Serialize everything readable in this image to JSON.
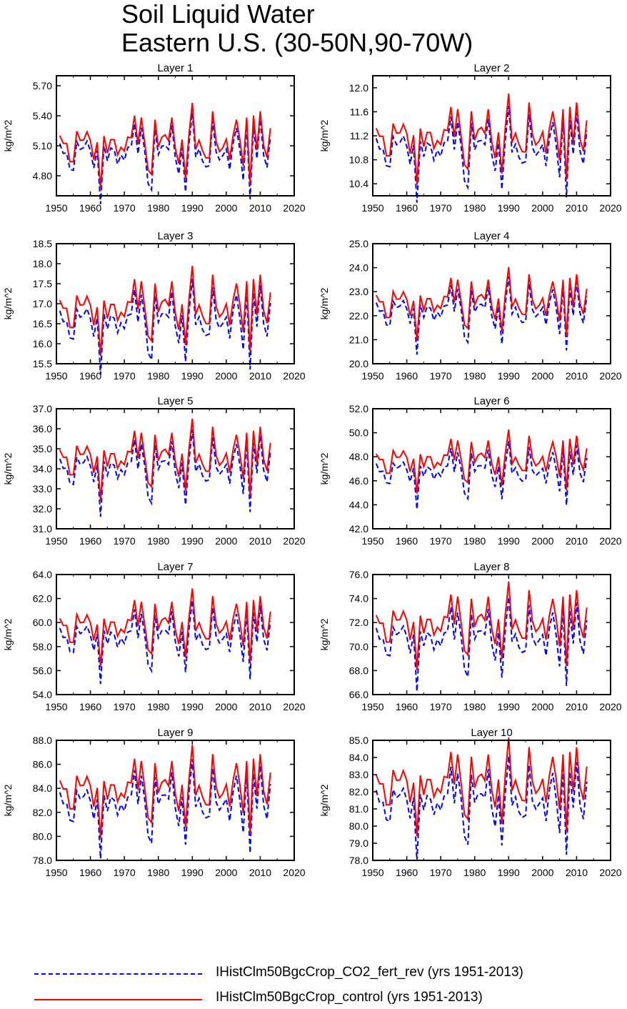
{
  "title": {
    "line1": "Soil Liquid Water",
    "line2": "Eastern U.S. (30-50N,90-70W)"
  },
  "legend": {
    "items": [
      {
        "label": "IHistClm50BgcCrop_CO2_fert_rev (yrs 1951-2013)",
        "color": "#0000ff",
        "style": "dashed"
      },
      {
        "label": "IHistClm50BgcCrop_control (yrs 1951-2013)",
        "color": "#ff0000",
        "style": "solid"
      }
    ]
  },
  "series_colors": {
    "fert_rev": "#0000ff",
    "control": "#ff0000"
  },
  "chart_data": [
    {
      "type": "line",
      "title": "Layer 1",
      "ylabel": "kg/m^2",
      "xlim": [
        1950,
        2020
      ],
      "ylim": [
        4.6,
        5.8
      ],
      "xticks": [
        1950,
        1960,
        1970,
        1980,
        1990,
        2000,
        2010,
        2020
      ],
      "xtick_labels": [
        "1950",
        "1960",
        "1970",
        "1980",
        "1990",
        "2000",
        "2010",
        "2020"
      ],
      "yticks": [
        4.8,
        5.1,
        5.4,
        5.7
      ],
      "ytick_labels": [
        "4.80",
        "5.10",
        "5.40",
        "5.70"
      ],
      "base": 5.13,
      "amp": 0.21,
      "offset": 0.09,
      "x_start": 1951,
      "x_end": 2013
    },
    {
      "type": "line",
      "title": "Layer 2",
      "ylabel": "kg/m^2",
      "xlim": [
        1950,
        2020
      ],
      "ylim": [
        10.2,
        12.2
      ],
      "xticks": [
        1950,
        1960,
        1970,
        1980,
        1990,
        2000,
        2010,
        2020
      ],
      "xtick_labels": [
        "1950",
        "1960",
        "1970",
        "1980",
        "1990",
        "2000",
        "2010",
        "2020"
      ],
      "yticks": [
        10.4,
        10.8,
        11.2,
        11.6,
        12.0
      ],
      "ytick_labels": [
        "10.4",
        "10.8",
        "11.2",
        "11.6",
        "12.0"
      ],
      "base": 11.2,
      "amp": 0.37,
      "offset": 0.19,
      "x_start": 1951,
      "x_end": 2013
    },
    {
      "type": "line",
      "title": "Layer 3",
      "ylabel": "kg/m^2",
      "xlim": [
        1950,
        2020
      ],
      "ylim": [
        15.5,
        18.5
      ],
      "xticks": [
        1950,
        1960,
        1970,
        1980,
        1990,
        2000,
        2010,
        2020
      ],
      "xtick_labels": [
        "1950",
        "1960",
        "1970",
        "1980",
        "1990",
        "2000",
        "2010",
        "2020"
      ],
      "yticks": [
        15.5,
        16.0,
        16.5,
        17.0,
        17.5,
        18.0,
        18.5
      ],
      "ytick_labels": [
        "15.5",
        "16.0",
        "16.5",
        "17.0",
        "17.5",
        "18.0",
        "18.5"
      ],
      "base": 16.9,
      "amp": 0.55,
      "offset": 0.3,
      "x_start": 1951,
      "x_end": 2013
    },
    {
      "type": "line",
      "title": "Layer 4",
      "ylabel": "kg/m^2",
      "xlim": [
        1950,
        2020
      ],
      "ylim": [
        20.0,
        25.0
      ],
      "xticks": [
        1950,
        1960,
        1970,
        1980,
        1990,
        2000,
        2010,
        2020
      ],
      "xtick_labels": [
        "1950",
        "1960",
        "1970",
        "1980",
        "1990",
        "2000",
        "2010",
        "2020"
      ],
      "yticks": [
        20.0,
        21.0,
        22.0,
        23.0,
        24.0,
        25.0
      ],
      "ytick_labels": [
        "20.0",
        "21.0",
        "22.0",
        "23.0",
        "24.0",
        "25.0"
      ],
      "base": 22.6,
      "amp": 0.75,
      "offset": 0.35,
      "x_start": 1951,
      "x_end": 2013
    },
    {
      "type": "line",
      "title": "Layer 5",
      "ylabel": "kg/m^2",
      "xlim": [
        1950,
        2020
      ],
      "ylim": [
        31.0,
        37.0
      ],
      "xticks": [
        1950,
        1960,
        1970,
        1980,
        1990,
        2000,
        2010,
        2020
      ],
      "xtick_labels": [
        "1950",
        "1960",
        "1970",
        "1980",
        "1990",
        "2000",
        "2010",
        "2020"
      ],
      "yticks": [
        31.0,
        32.0,
        33.0,
        34.0,
        35.0,
        36.0,
        37.0
      ],
      "ytick_labels": [
        "31.0",
        "32.0",
        "33.0",
        "34.0",
        "35.0",
        "36.0",
        "37.0"
      ],
      "base": 34.6,
      "amp": 1.0,
      "offset": 0.5,
      "x_start": 1951,
      "x_end": 2013
    },
    {
      "type": "line",
      "title": "Layer 6",
      "ylabel": "kg/m^2",
      "xlim": [
        1950,
        2020
      ],
      "ylim": [
        42.0,
        52.0
      ],
      "xticks": [
        1950,
        1960,
        1970,
        1980,
        1990,
        2000,
        2010,
        2020
      ],
      "xtick_labels": [
        "1950",
        "1960",
        "1970",
        "1980",
        "1990",
        "2000",
        "2010",
        "2020"
      ],
      "yticks": [
        42.0,
        44.0,
        46.0,
        48.0,
        50.0,
        52.0
      ],
      "ytick_labels": [
        "42.0",
        "44.0",
        "46.0",
        "48.0",
        "50.0",
        "52.0"
      ],
      "base": 47.8,
      "amp": 1.3,
      "offset": 0.9,
      "x_start": 1951,
      "x_end": 2013
    },
    {
      "type": "line",
      "title": "Layer 7",
      "ylabel": "kg/m^2",
      "xlim": [
        1950,
        2020
      ],
      "ylim": [
        54.0,
        64.0
      ],
      "xticks": [
        1950,
        1960,
        1970,
        1980,
        1990,
        2000,
        2010,
        2020
      ],
      "xtick_labels": [
        "1950",
        "1960",
        "1970",
        "1980",
        "1990",
        "2000",
        "2010",
        "2020"
      ],
      "yticks": [
        54.0,
        56.0,
        58.0,
        60.0,
        62.0,
        64.0
      ],
      "ytick_labels": [
        "54.0",
        "56.0",
        "58.0",
        "60.0",
        "62.0",
        "64.0"
      ],
      "base": 59.8,
      "amp": 1.6,
      "offset": 0.9,
      "x_start": 1951,
      "x_end": 2013
    },
    {
      "type": "line",
      "title": "Layer 8",
      "ylabel": "kg/m^2",
      "xlim": [
        1950,
        2020
      ],
      "ylim": [
        66.0,
        76.0
      ],
      "xticks": [
        1950,
        1960,
        1970,
        1980,
        1990,
        2000,
        2010,
        2020
      ],
      "xtick_labels": [
        "1950",
        "1960",
        "1970",
        "1980",
        "1990",
        "2000",
        "2010",
        "2020"
      ],
      "yticks": [
        66.0,
        68.0,
        70.0,
        72.0,
        74.0,
        76.0
      ],
      "ytick_labels": [
        "66.0",
        "68.0",
        "70.0",
        "72.0",
        "74.0",
        "76.0"
      ],
      "base": 72.0,
      "amp": 1.8,
      "offset": 1.2,
      "x_start": 1951,
      "x_end": 2013
    },
    {
      "type": "line",
      "title": "Layer 9",
      "ylabel": "kg/m^2",
      "xlim": [
        1950,
        2020
      ],
      "ylim": [
        78.0,
        88.0
      ],
      "xticks": [
        1950,
        1960,
        1970,
        1980,
        1990,
        2000,
        2010,
        2020
      ],
      "xtick_labels": [
        "1950",
        "1960",
        "1970",
        "1980",
        "1990",
        "2000",
        "2010",
        "2020"
      ],
      "yticks": [
        78.0,
        80.0,
        82.0,
        84.0,
        86.0,
        88.0
      ],
      "ytick_labels": [
        "78.0",
        "80.0",
        "82.0",
        "84.0",
        "86.0",
        "88.0"
      ],
      "base": 84.0,
      "amp": 1.9,
      "offset": 1.1,
      "x_start": 1951,
      "x_end": 2013
    },
    {
      "type": "line",
      "title": "Layer 10",
      "ylabel": "kg/m^2",
      "xlim": [
        1950,
        2020
      ],
      "ylim": [
        78.0,
        85.0
      ],
      "xticks": [
        1950,
        1960,
        1970,
        1980,
        1990,
        2000,
        2010,
        2020
      ],
      "xtick_labels": [
        "1950",
        "1960",
        "1970",
        "1980",
        "1990",
        "2000",
        "2010",
        "2020"
      ],
      "yticks": [
        78.0,
        79.0,
        80.0,
        81.0,
        82.0,
        83.0,
        84.0,
        85.0
      ],
      "ytick_labels": [
        "78.0",
        "79.0",
        "80.0",
        "81.0",
        "82.0",
        "83.0",
        "84.0",
        "85.0"
      ],
      "base": 82.5,
      "amp": 1.4,
      "offset": 1.0,
      "x_start": 1951,
      "x_end": 2013
    }
  ]
}
